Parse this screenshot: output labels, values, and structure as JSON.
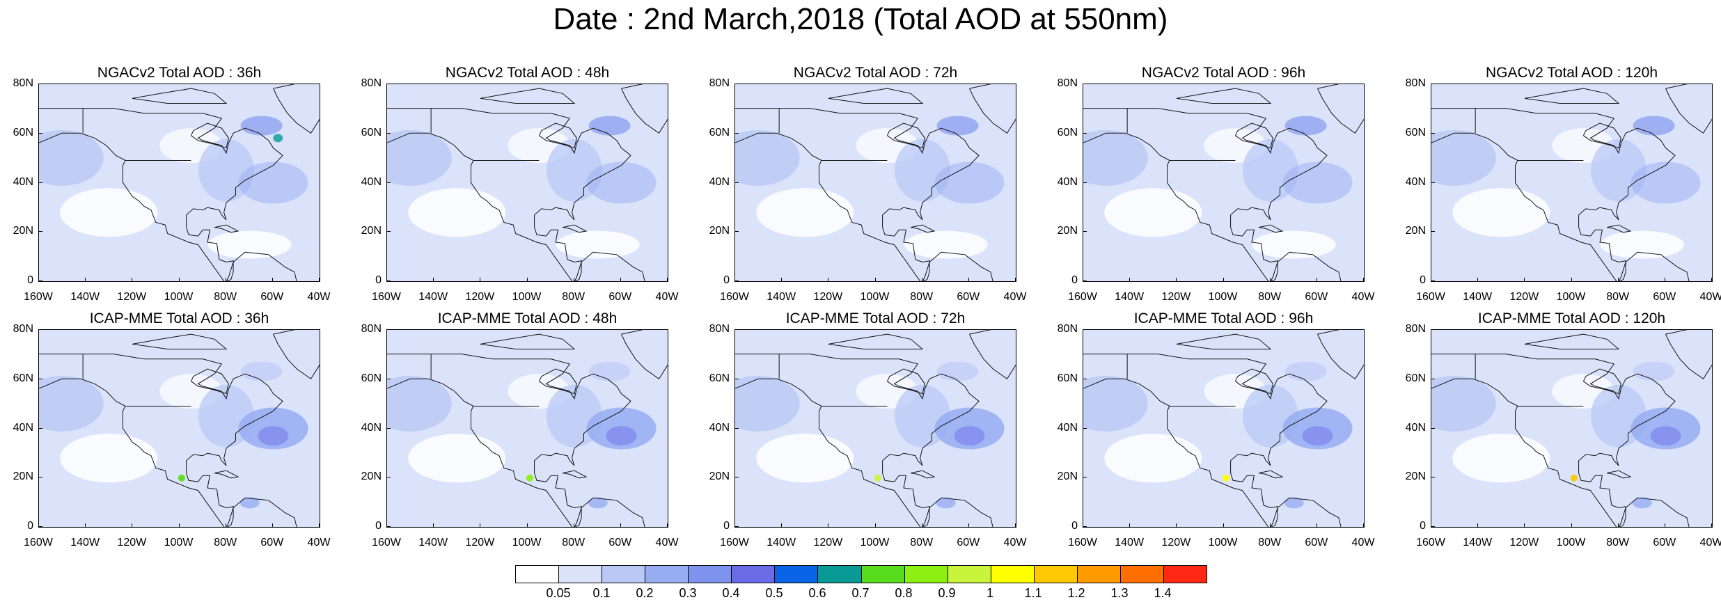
{
  "title": "Date : 2nd March,2018 (Total AOD at 550nm)",
  "axes": {
    "y_labels": [
      "80N",
      "60N",
      "40N",
      "20N",
      "0"
    ],
    "x_labels": [
      "160W",
      "140W",
      "120W",
      "100W",
      "80W",
      "60W",
      "40W"
    ]
  },
  "panels": [
    {
      "title": "NGACv2 Total AOD : 36h"
    },
    {
      "title": "NGACv2 Total AOD : 48h"
    },
    {
      "title": "NGACv2 Total AOD : 72h"
    },
    {
      "title": "NGACv2 Total AOD : 96h"
    },
    {
      "title": "NGACv2 Total AOD : 120h"
    },
    {
      "title": "ICAP-MME Total AOD : 36h"
    },
    {
      "title": "ICAP-MME Total AOD : 48h"
    },
    {
      "title": "ICAP-MME Total AOD : 72h"
    },
    {
      "title": "ICAP-MME Total AOD : 96h"
    },
    {
      "title": "ICAP-MME Total AOD : 120h"
    }
  ],
  "colorbar": {
    "labels": [
      "0.05",
      "0.1",
      "0.2",
      "0.3",
      "0.4",
      "0.5",
      "0.6",
      "0.7",
      "0.8",
      "0.9",
      "1",
      "1.1",
      "1.2",
      "1.3",
      "1.4"
    ],
    "colors": [
      "#ffffff",
      "#dbe3fa",
      "#b9c8f5",
      "#97adf2",
      "#7e93ee",
      "#6b6be8",
      "#0a64e6",
      "#0a9a96",
      "#5adc1e",
      "#8cf012",
      "#c8f53c",
      "#ffff00",
      "#ffc800",
      "#ff9b00",
      "#ff6e00",
      "#ff2814"
    ]
  }
}
